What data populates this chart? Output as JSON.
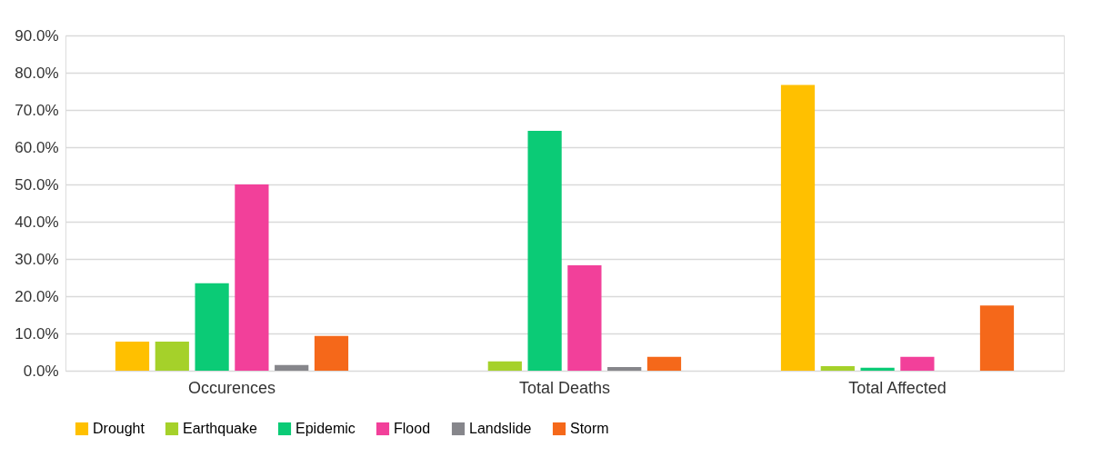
{
  "chart_data": {
    "type": "bar",
    "categories": [
      "Occurences",
      "Total Deaths",
      "Total Affected"
    ],
    "series": [
      {
        "name": "Drought",
        "color": "#ffc000",
        "values": [
          7.8,
          0,
          76.7
        ]
      },
      {
        "name": "Earthquake",
        "color": "#a5d12a",
        "values": [
          7.8,
          2.5,
          1.2
        ]
      },
      {
        "name": "Epidemic",
        "color": "#0bcb76",
        "values": [
          23.5,
          64.4,
          0.8
        ]
      },
      {
        "name": "Flood",
        "color": "#f2409a",
        "values": [
          50,
          28.3,
          3.7
        ]
      },
      {
        "name": "Landslide",
        "color": "#86868b",
        "values": [
          1.5,
          1.0,
          0
        ]
      },
      {
        "name": "Storm",
        "color": "#f5681a",
        "values": [
          9.3,
          3.7,
          17.5
        ]
      }
    ],
    "ylim": [
      0,
      90
    ],
    "yticks": [
      {
        "value": 0,
        "label": "0.0%"
      },
      {
        "value": 10,
        "label": "10.0%"
      },
      {
        "value": 20,
        "label": "20.0%"
      },
      {
        "value": 30,
        "label": "30.0%"
      },
      {
        "value": 40,
        "label": "40.0%"
      },
      {
        "value": 50,
        "label": "50.0%"
      },
      {
        "value": 60,
        "label": "60.0%"
      },
      {
        "value": 70,
        "label": "70.0%"
      },
      {
        "value": 80,
        "label": "80.0%"
      },
      {
        "value": 90,
        "label": "90.0%"
      }
    ],
    "grid": "y",
    "legend": "bottom"
  }
}
